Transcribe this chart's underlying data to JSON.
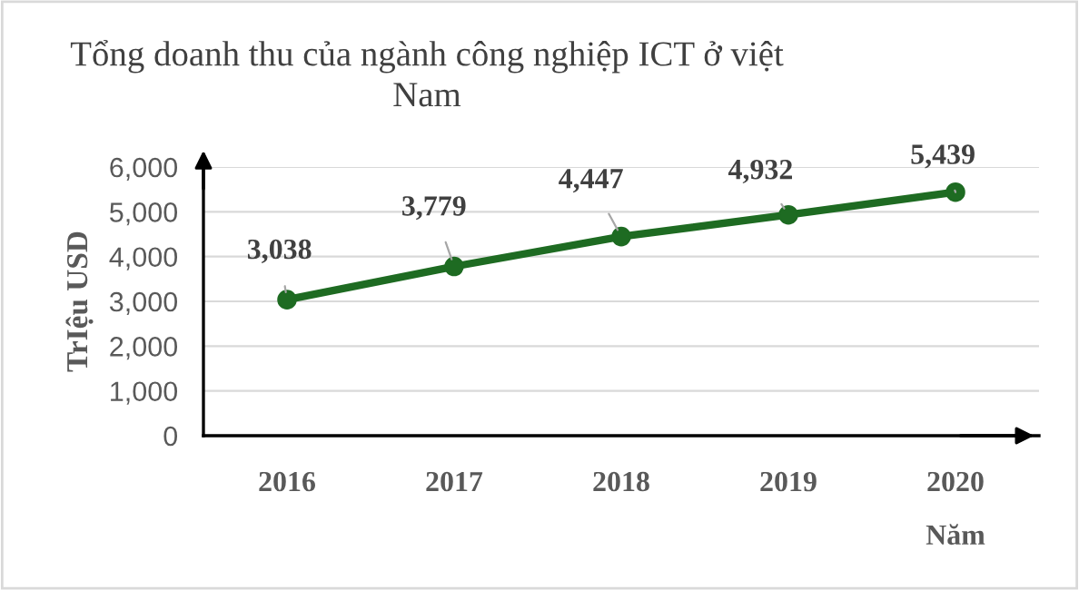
{
  "chart_data": {
    "type": "line",
    "title": "Tổng doanh thu của ngành công nghiệp ICT ở việt Nam",
    "xlabel": "Năm",
    "ylabel": "TrIệu USD",
    "categories": [
      "2016",
      "2017",
      "2018",
      "2019",
      "2020"
    ],
    "series": [
      {
        "color": "#1e6b22",
        "values": [
          3038,
          3779,
          4447,
          4932,
          5439
        ],
        "value_labels": [
          "3,038",
          "3,779",
          "4,447",
          "4,932",
          "5,439"
        ]
      }
    ],
    "ylim": [
      0,
      6000
    ],
    "yticks": [
      0,
      {
        "value": 1000,
        "label": "1,000"
      },
      {
        "value": 2000,
        "label": "2,000"
      },
      {
        "value": 3000,
        "label": "3,000"
      },
      {
        "value": 4000,
        "label": "4,000"
      },
      {
        "value": 5000,
        "label": "5,000"
      },
      {
        "value": 6000,
        "label": "6,000"
      }
    ],
    "grid": "y",
    "marker": "circle",
    "line_style": "solid"
  }
}
